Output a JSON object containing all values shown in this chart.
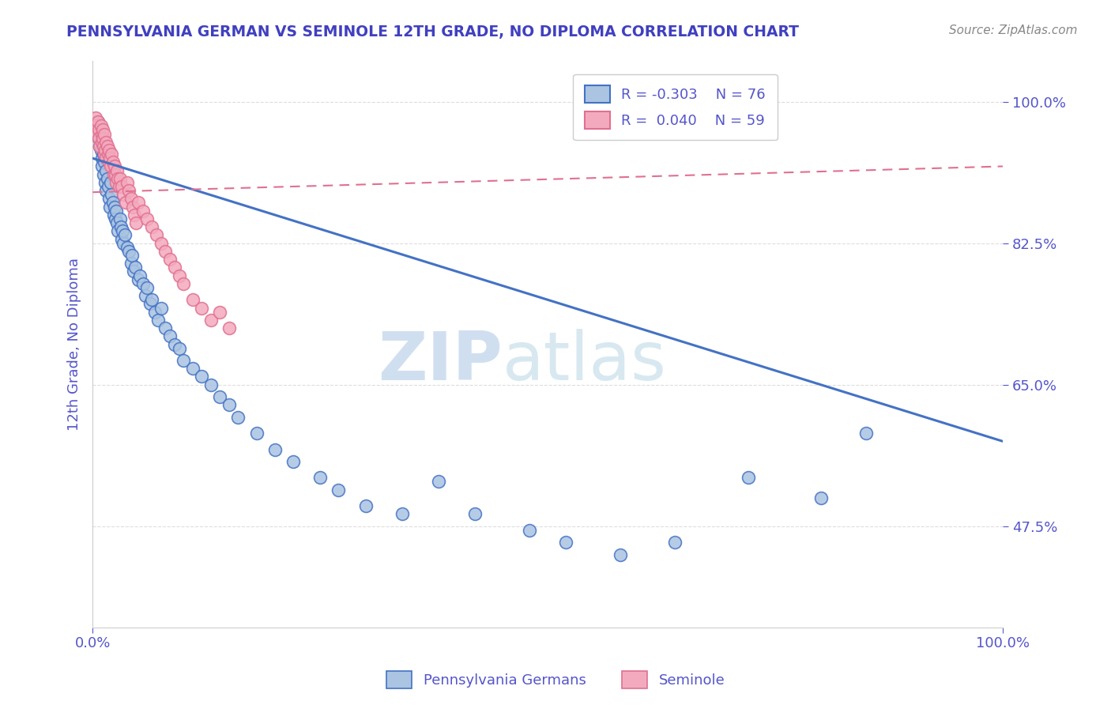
{
  "title": "PENNSYLVANIA GERMAN VS SEMINOLE 12TH GRADE, NO DIPLOMA CORRELATION CHART",
  "source_text": "Source: ZipAtlas.com",
  "ylabel": "12th Grade, No Diploma",
  "xlim": [
    0.0,
    1.0
  ],
  "ylim": [
    0.35,
    1.05
  ],
  "x_tick_labels": [
    "0.0%",
    "100.0%"
  ],
  "y_tick_labels_right": [
    "47.5%",
    "65.0%",
    "82.5%",
    "100.0%"
  ],
  "y_tick_positions_right": [
    0.475,
    0.65,
    0.825,
    1.0
  ],
  "legend_r_blue": "R = -0.303",
  "legend_n_blue": "N = 76",
  "legend_r_pink": "R =  0.040",
  "legend_n_pink": "N = 59",
  "blue_color": "#aac4e2",
  "pink_color": "#f4aabe",
  "blue_line_color": "#4472c4",
  "pink_line_color": "#e07090",
  "title_color": "#4040c0",
  "axis_label_color": "#5555cc",
  "watermark_color": "#d0dff0",
  "grid_color": "#dddddd",
  "background_color": "#ffffff",
  "blue_trend_start_y": 0.93,
  "blue_trend_end_y": 0.58,
  "pink_trend_start_y": 0.888,
  "pink_trend_end_y": 0.92,
  "blue_x": [
    0.004,
    0.006,
    0.007,
    0.008,
    0.009,
    0.01,
    0.01,
    0.011,
    0.012,
    0.012,
    0.013,
    0.014,
    0.015,
    0.015,
    0.016,
    0.017,
    0.018,
    0.019,
    0.02,
    0.021,
    0.022,
    0.023,
    0.024,
    0.025,
    0.026,
    0.027,
    0.028,
    0.03,
    0.031,
    0.032,
    0.033,
    0.034,
    0.035,
    0.038,
    0.04,
    0.042,
    0.043,
    0.045,
    0.047,
    0.05,
    0.052,
    0.055,
    0.058,
    0.06,
    0.063,
    0.065,
    0.068,
    0.072,
    0.075,
    0.08,
    0.085,
    0.09,
    0.095,
    0.1,
    0.11,
    0.12,
    0.13,
    0.14,
    0.15,
    0.16,
    0.18,
    0.2,
    0.22,
    0.25,
    0.27,
    0.3,
    0.34,
    0.38,
    0.42,
    0.48,
    0.52,
    0.58,
    0.64,
    0.72,
    0.8,
    0.85
  ],
  "blue_y": [
    0.96,
    0.975,
    0.955,
    0.945,
    0.94,
    0.93,
    0.92,
    0.95,
    0.935,
    0.91,
    0.925,
    0.9,
    0.915,
    0.89,
    0.905,
    0.895,
    0.88,
    0.87,
    0.9,
    0.885,
    0.875,
    0.86,
    0.87,
    0.855,
    0.865,
    0.85,
    0.84,
    0.855,
    0.845,
    0.83,
    0.84,
    0.825,
    0.835,
    0.82,
    0.815,
    0.8,
    0.81,
    0.79,
    0.795,
    0.78,
    0.785,
    0.775,
    0.76,
    0.77,
    0.75,
    0.755,
    0.74,
    0.73,
    0.745,
    0.72,
    0.71,
    0.7,
    0.695,
    0.68,
    0.67,
    0.66,
    0.65,
    0.635,
    0.625,
    0.61,
    0.59,
    0.57,
    0.555,
    0.535,
    0.52,
    0.5,
    0.49,
    0.53,
    0.49,
    0.47,
    0.455,
    0.44,
    0.455,
    0.535,
    0.51,
    0.59
  ],
  "pink_x": [
    0.003,
    0.004,
    0.005,
    0.006,
    0.007,
    0.007,
    0.008,
    0.009,
    0.01,
    0.01,
    0.011,
    0.011,
    0.012,
    0.013,
    0.013,
    0.014,
    0.015,
    0.015,
    0.016,
    0.017,
    0.018,
    0.018,
    0.019,
    0.02,
    0.021,
    0.022,
    0.023,
    0.024,
    0.025,
    0.026,
    0.027,
    0.028,
    0.029,
    0.03,
    0.032,
    0.034,
    0.036,
    0.038,
    0.04,
    0.042,
    0.044,
    0.046,
    0.048,
    0.05,
    0.055,
    0.06,
    0.065,
    0.07,
    0.075,
    0.08,
    0.085,
    0.09,
    0.095,
    0.1,
    0.11,
    0.12,
    0.13,
    0.14,
    0.15
  ],
  "pink_y": [
    0.98,
    0.97,
    0.96,
    0.975,
    0.965,
    0.955,
    0.945,
    0.97,
    0.96,
    0.95,
    0.965,
    0.955,
    0.945,
    0.935,
    0.96,
    0.94,
    0.95,
    0.93,
    0.945,
    0.935,
    0.925,
    0.94,
    0.93,
    0.92,
    0.935,
    0.925,
    0.91,
    0.92,
    0.91,
    0.9,
    0.915,
    0.905,
    0.895,
    0.905,
    0.895,
    0.885,
    0.875,
    0.9,
    0.89,
    0.88,
    0.87,
    0.86,
    0.85,
    0.875,
    0.865,
    0.855,
    0.845,
    0.835,
    0.825,
    0.815,
    0.805,
    0.795,
    0.785,
    0.775,
    0.755,
    0.745,
    0.73,
    0.74,
    0.72
  ]
}
